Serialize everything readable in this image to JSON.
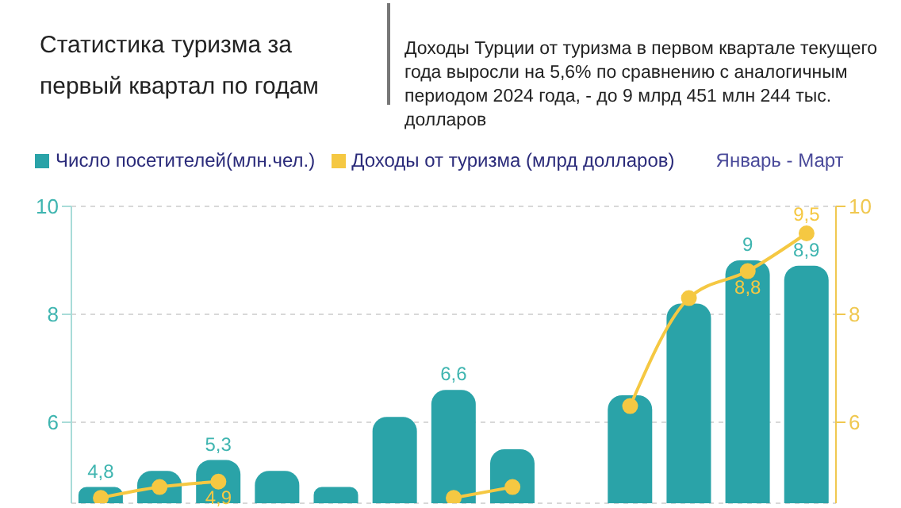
{
  "chart_data": {
    "type": "bar",
    "title": "Статистика туризма за первый квартал по годам",
    "subtitle": "Доходы Турции от туризма в первом квартале текущего года выросли на 5,6% по сравнению с аналогичным периодом 2024  года, - до 9 млрд 451 млн 244 тыс. долларов",
    "annotations": [
      "Январь - Март"
    ],
    "categories": [
      null,
      null,
      null,
      null,
      null,
      null,
      null,
      null,
      null,
      null,
      null,
      null,
      null
    ],
    "series": [
      {
        "name": "Число посетителей(млн.чел.)",
        "color": "#2aa3a8",
        "values": [
          4.8,
          5.1,
          5.3,
          5.1,
          4.8,
          6.1,
          6.6,
          5.5,
          null,
          6.5,
          8.2,
          9,
          8.9
        ],
        "value_labels": [
          "4,8",
          null,
          "5,3",
          null,
          null,
          null,
          "6,6",
          null,
          null,
          null,
          null,
          "9",
          "8,9"
        ]
      },
      {
        "name": "Доходы от туризма (млрд долларов)",
        "type": "line",
        "axis": "y2",
        "color": "#f5c842",
        "values": [
          4.6,
          4.8,
          4.9,
          null,
          null,
          null,
          4.6,
          4.8,
          null,
          6.3,
          8.3,
          8.8,
          9.5
        ],
        "value_labels": [
          null,
          null,
          "4,9",
          null,
          null,
          null,
          null,
          null,
          null,
          null,
          null,
          "8,8",
          "9,5"
        ]
      }
    ],
    "ylim": [
      4.5,
      10
    ],
    "yticks": [
      6,
      8,
      10
    ],
    "y2lim": [
      4.5,
      10
    ],
    "y2ticks": [
      6,
      8,
      10
    ],
    "grid": "y",
    "legend": "top left",
    "marker": "circle",
    "line_style": "solid"
  }
}
